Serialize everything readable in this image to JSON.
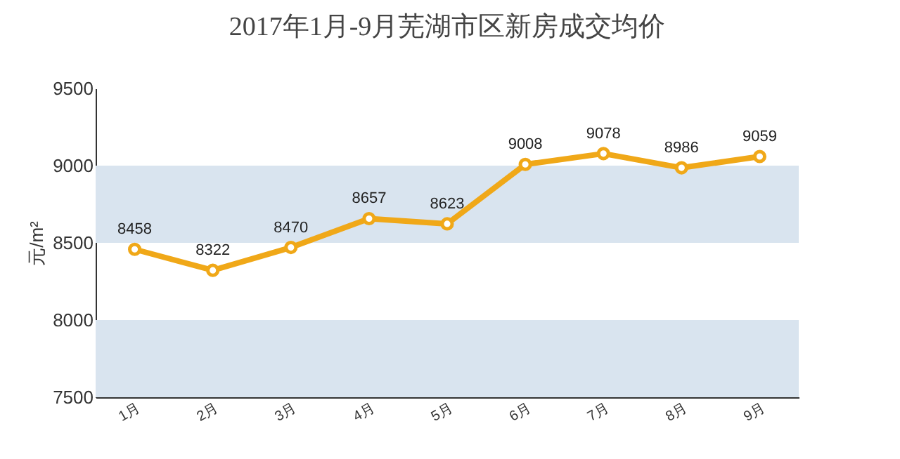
{
  "chart_data": {
    "type": "line",
    "title": "2017年1月-9月芜湖市区新房成交均价",
    "ylabel": "元/m²",
    "categories": [
      "1月",
      "2月",
      "3月",
      "4月",
      "5月",
      "6月",
      "7月",
      "8月",
      "9月"
    ],
    "series": [
      {
        "color": "#f0a818",
        "values": [
          8458,
          8322,
          8470,
          8657,
          8623,
          9008,
          9078,
          8986,
          9059
        ]
      }
    ],
    "ylim": [
      7500,
      9500
    ],
    "yticks": [
      7500,
      8000,
      8500,
      9000,
      9500
    ],
    "bands": [
      {
        "axis": "y",
        "from": 7500,
        "to": 8000,
        "color": "#d9e4ef"
      },
      {
        "axis": "y",
        "from": 8500,
        "to": 9000,
        "color": "#d9e4ef"
      }
    ],
    "data_labels": true,
    "marker": "circle"
  }
}
